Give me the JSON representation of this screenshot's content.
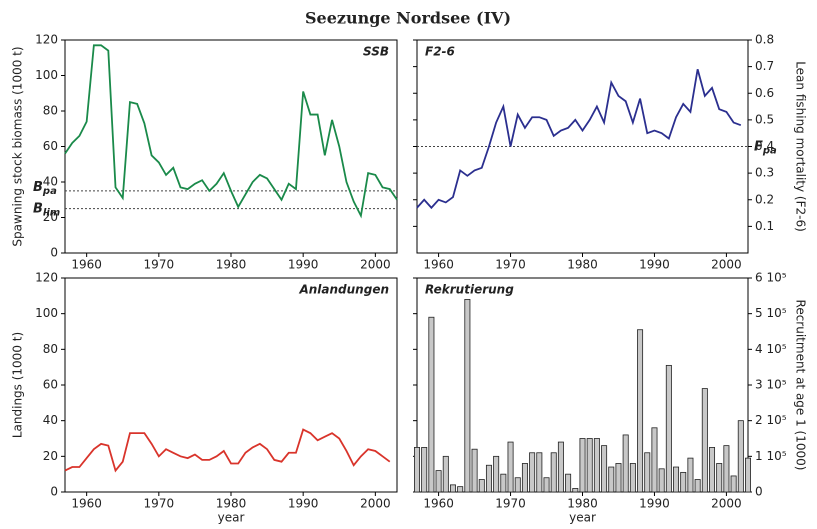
{
  "title": "Seezunge Nordsee (IV)",
  "chart_data": [
    {
      "type": "line",
      "label": "SSB",
      "ylabel": "Spawning stock biomass (1000 t)",
      "yaxis": "left",
      "color": "#1a8a4a",
      "xlim": [
        1957,
        2003
      ],
      "xticks": [
        1960,
        1970,
        1980,
        1990,
        2000
      ],
      "ylim": [
        0,
        120
      ],
      "yticks": [
        0,
        20,
        40,
        60,
        80,
        100,
        120
      ],
      "x": [
        1957,
        1958,
        1959,
        1960,
        1961,
        1962,
        1963,
        1964,
        1965,
        1966,
        1967,
        1968,
        1969,
        1970,
        1971,
        1972,
        1973,
        1974,
        1975,
        1976,
        1977,
        1978,
        1979,
        1980,
        1981,
        1982,
        1983,
        1984,
        1985,
        1986,
        1987,
        1988,
        1989,
        1990,
        1991,
        1992,
        1993,
        1994,
        1995,
        1996,
        1997,
        1998,
        1999,
        2000,
        2001,
        2002,
        2003
      ],
      "values": [
        56,
        62,
        66,
        74,
        117,
        117,
        114,
        37,
        31,
        85,
        84,
        73,
        55,
        51,
        44,
        48,
        37,
        36,
        39,
        41,
        35,
        39,
        45,
        35,
        26,
        33,
        40,
        44,
        42,
        36,
        30,
        39,
        36,
        91,
        78,
        78,
        55,
        75,
        60,
        40,
        29,
        21,
        45,
        44,
        37,
        36,
        30
      ],
      "hlines": [
        {
          "value": 35,
          "label": "B",
          "sub": "pa"
        },
        {
          "value": 25,
          "label": "B",
          "sub": "lim"
        }
      ]
    },
    {
      "type": "line",
      "label": "F2-6",
      "ylabel": "Lean fishing mortality (F2-6)",
      "yaxis": "right",
      "color": "#2b2f8f",
      "xlim": [
        1957,
        2003
      ],
      "xticks": [
        1960,
        1970,
        1980,
        1990,
        2000
      ],
      "ylim": [
        0,
        0.8
      ],
      "yticks": [
        0.1,
        0.2,
        0.3,
        0.4,
        0.5,
        0.6,
        0.7,
        0.8
      ],
      "x": [
        1957,
        1958,
        1959,
        1960,
        1961,
        1962,
        1963,
        1964,
        1965,
        1966,
        1967,
        1968,
        1969,
        1970,
        1971,
        1972,
        1973,
        1974,
        1975,
        1976,
        1977,
        1978,
        1979,
        1980,
        1981,
        1982,
        1983,
        1984,
        1985,
        1986,
        1987,
        1988,
        1989,
        1990,
        1991,
        1992,
        1993,
        1994,
        1995,
        1996,
        1997,
        1998,
        1999,
        2000,
        2001,
        2002
      ],
      "values": [
        0.17,
        0.2,
        0.17,
        0.2,
        0.19,
        0.21,
        0.31,
        0.29,
        0.31,
        0.32,
        0.4,
        0.49,
        0.55,
        0.4,
        0.52,
        0.47,
        0.51,
        0.51,
        0.5,
        0.44,
        0.46,
        0.47,
        0.5,
        0.46,
        0.5,
        0.55,
        0.49,
        0.64,
        0.59,
        0.57,
        0.49,
        0.58,
        0.45,
        0.46,
        0.45,
        0.43,
        0.51,
        0.56,
        0.53,
        0.69,
        0.59,
        0.62,
        0.54,
        0.53,
        0.49,
        0.48
      ],
      "hlines": [
        {
          "value": 0.4,
          "label": "F",
          "sub": "pa"
        }
      ]
    },
    {
      "type": "line",
      "label": "Anlandungen",
      "ylabel": "Landings (1000 t)",
      "xlabel": "year",
      "yaxis": "left",
      "color": "#d9342b",
      "xlim": [
        1957,
        2003
      ],
      "xticks": [
        1960,
        1970,
        1980,
        1990,
        2000
      ],
      "ylim": [
        0,
        120
      ],
      "yticks": [
        0,
        20,
        40,
        60,
        80,
        100,
        120
      ],
      "x": [
        1957,
        1958,
        1959,
        1960,
        1961,
        1962,
        1963,
        1964,
        1965,
        1966,
        1967,
        1968,
        1969,
        1970,
        1971,
        1972,
        1973,
        1974,
        1975,
        1976,
        1977,
        1978,
        1979,
        1980,
        1981,
        1982,
        1983,
        1984,
        1985,
        1986,
        1987,
        1988,
        1989,
        1990,
        1991,
        1992,
        1993,
        1994,
        1995,
        1996,
        1997,
        1998,
        1999,
        2000,
        2001,
        2002
      ],
      "values": [
        12,
        14,
        14,
        19,
        24,
        27,
        26,
        12,
        17,
        33,
        33,
        33,
        27,
        20,
        24,
        22,
        20,
        19,
        21,
        18,
        18,
        20,
        23,
        16,
        16,
        22,
        25,
        27,
        24,
        18,
        17,
        22,
        22,
        35,
        33,
        29,
        31,
        33,
        30,
        23,
        15,
        20,
        24,
        23,
        20,
        17
      ]
    },
    {
      "type": "bar",
      "label": "Rekrutierung",
      "ylabel": "Recruitment at age 1 (1000)",
      "xlabel": "year",
      "yaxis": "right",
      "color": "#c8c8c8",
      "xlim": [
        1957,
        2003
      ],
      "xticks": [
        1960,
        1970,
        1980,
        1990,
        2000
      ],
      "ylim": [
        0,
        600000
      ],
      "yticks": [
        0,
        {
          "value": 100000,
          "label": "1 10⁵"
        },
        {
          "value": 200000,
          "label": "2 10⁵"
        },
        {
          "value": 300000,
          "label": "3 10⁵"
        },
        {
          "value": 400000,
          "label": "4 10⁵"
        },
        {
          "value": 500000,
          "label": "5 10⁵"
        },
        {
          "value": 600000,
          "label": "6 10⁵"
        }
      ],
      "x": [
        1957,
        1958,
        1959,
        1960,
        1961,
        1962,
        1963,
        1964,
        1965,
        1966,
        1967,
        1968,
        1969,
        1970,
        1971,
        1972,
        1973,
        1974,
        1975,
        1976,
        1977,
        1978,
        1979,
        1980,
        1981,
        1982,
        1983,
        1984,
        1985,
        1986,
        1987,
        1988,
        1989,
        1990,
        1991,
        1992,
        1993,
        1994,
        1995,
        1996,
        1997,
        1998,
        1999,
        2000,
        2001,
        2002,
        2003
      ],
      "values": [
        125000,
        125000,
        490000,
        60000,
        100000,
        20000,
        15000,
        540000,
        120000,
        35000,
        75000,
        100000,
        50000,
        140000,
        40000,
        80000,
        110000,
        110000,
        40000,
        110000,
        140000,
        50000,
        10000,
        150000,
        150000,
        150000,
        130000,
        70000,
        80000,
        160000,
        80000,
        455000,
        110000,
        180000,
        65000,
        355000,
        70000,
        55000,
        95000,
        35000,
        290000,
        125000,
        80000,
        130000,
        45000,
        200000,
        95000
      ]
    }
  ]
}
